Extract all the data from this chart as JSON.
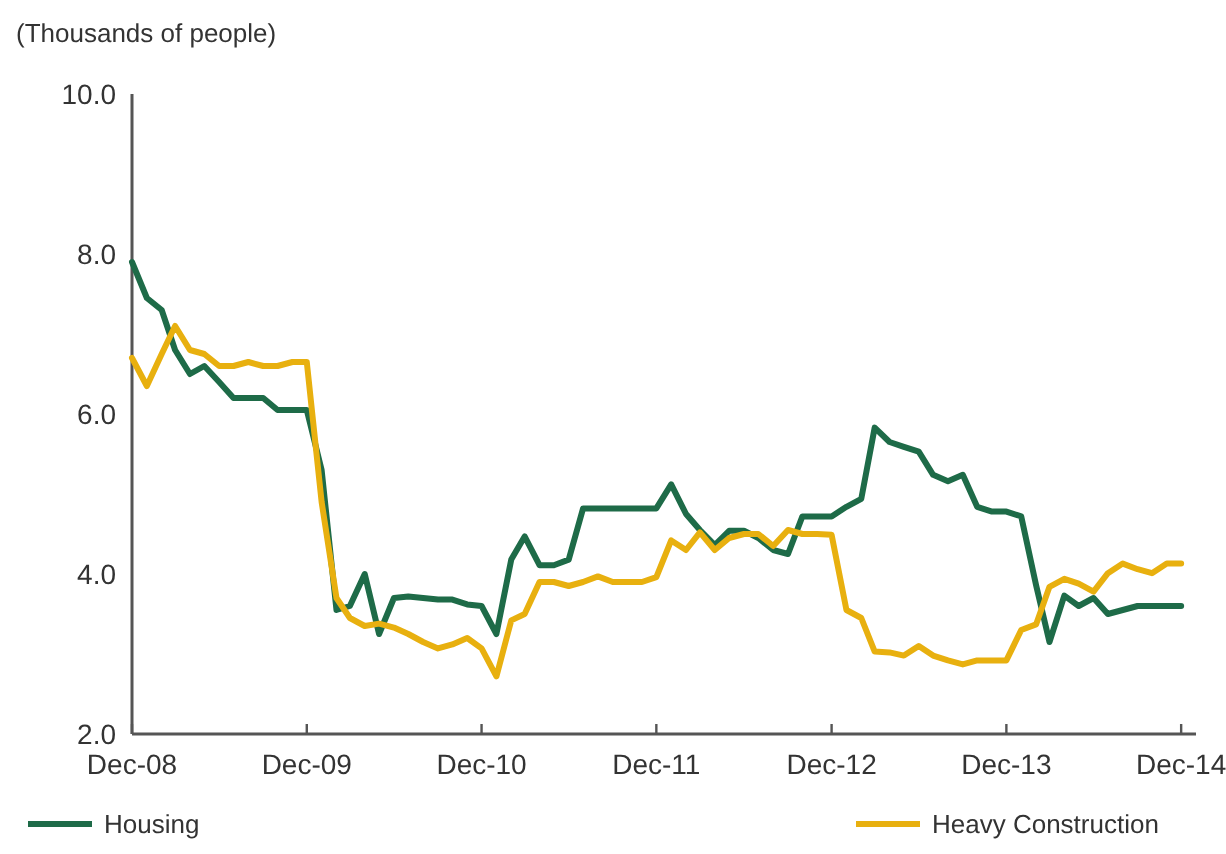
{
  "chart_data": {
    "type": "line",
    "ylabel": "(Thousands of people)",
    "x": [
      "2008-12",
      "2009-01",
      "2009-02",
      "2009-03",
      "2009-04",
      "2009-05",
      "2009-06",
      "2009-07",
      "2009-08",
      "2009-09",
      "2009-10",
      "2009-11",
      "2009-12",
      "2010-01",
      "2010-02",
      "2010-03",
      "2010-04",
      "2010-05",
      "2010-06",
      "2010-07",
      "2010-08",
      "2010-09",
      "2010-10",
      "2010-11",
      "2010-12",
      "2011-01",
      "2011-02",
      "2011-03",
      "2011-04",
      "2011-05",
      "2011-06",
      "2011-07",
      "2011-08",
      "2011-09",
      "2011-10",
      "2011-11",
      "2011-12",
      "2012-01",
      "2012-02",
      "2012-03",
      "2012-04",
      "2012-05",
      "2012-06",
      "2012-07",
      "2012-08",
      "2012-09",
      "2012-10",
      "2012-11",
      "2012-12",
      "2013-01",
      "2013-02",
      "2013-03",
      "2013-04",
      "2013-05",
      "2013-06",
      "2013-07",
      "2013-08",
      "2013-09",
      "2013-10",
      "2013-11",
      "2013-12",
      "2014-01",
      "2014-02",
      "2014-03",
      "2014-04",
      "2014-05",
      "2014-06",
      "2014-07",
      "2014-08",
      "2014-09",
      "2014-10",
      "2014-11",
      "2014-12"
    ],
    "series": [
      {
        "name": "Housing",
        "color": "#1e6b48",
        "values": [
          7.9,
          7.45,
          7.3,
          6.8,
          6.5,
          6.6,
          6.4,
          6.2,
          6.2,
          6.2,
          6.05,
          6.05,
          6.05,
          5.3,
          3.55,
          3.6,
          4.0,
          3.25,
          3.7,
          3.72,
          3.7,
          3.68,
          3.68,
          3.62,
          3.6,
          3.25,
          4.18,
          4.47,
          4.11,
          4.11,
          4.18,
          4.82,
          4.82,
          4.82,
          4.82,
          4.82,
          4.82,
          5.12,
          4.75,
          4.55,
          4.36,
          4.54,
          4.54,
          4.45,
          4.3,
          4.25,
          4.72,
          4.72,
          4.72,
          4.84,
          4.94,
          5.83,
          5.65,
          5.59,
          5.53,
          5.24,
          5.16,
          5.24,
          4.84,
          4.78,
          4.78,
          4.72,
          3.86,
          3.15,
          3.73,
          3.6,
          3.7,
          3.5,
          3.55,
          3.6,
          3.6,
          3.6,
          3.6
        ]
      },
      {
        "name": "Heavy Construction",
        "color": "#e8b00f",
        "values": [
          6.7,
          6.35,
          6.75,
          7.1,
          6.8,
          6.75,
          6.6,
          6.6,
          6.65,
          6.6,
          6.6,
          6.65,
          6.65,
          4.9,
          3.7,
          3.45,
          3.35,
          3.38,
          3.33,
          3.25,
          3.15,
          3.07,
          3.12,
          3.2,
          3.07,
          2.72,
          3.42,
          3.5,
          3.9,
          3.9,
          3.85,
          3.9,
          3.97,
          3.9,
          3.9,
          3.9,
          3.96,
          4.42,
          4.3,
          4.52,
          4.3,
          4.45,
          4.5,
          4.5,
          4.35,
          4.55,
          4.5,
          4.5,
          4.49,
          3.55,
          3.45,
          3.03,
          3.02,
          2.98,
          3.1,
          2.98,
          2.92,
          2.87,
          2.92,
          2.92,
          2.92,
          3.3,
          3.37,
          3.84,
          3.94,
          3.88,
          3.78,
          4.01,
          4.13,
          4.06,
          4.01,
          4.13,
          4.13
        ]
      }
    ],
    "xlim": [
      "2008-12",
      "2015-01"
    ],
    "xticks": [
      {
        "value": "2008-12",
        "label": "Dec-08"
      },
      {
        "value": "2009-12",
        "label": "Dec-09"
      },
      {
        "value": "2010-12",
        "label": "Dec-10"
      },
      {
        "value": "2011-12",
        "label": "Dec-11"
      },
      {
        "value": "2012-12",
        "label": "Dec-12"
      },
      {
        "value": "2013-12",
        "label": "Dec-13"
      },
      {
        "value": "2014-12",
        "label": "Dec-14"
      }
    ],
    "ylim": [
      2,
      10
    ],
    "yticks": [
      {
        "value": 2,
        "label": "2.0"
      },
      {
        "value": 4,
        "label": "4.0"
      },
      {
        "value": 6,
        "label": "6.0"
      },
      {
        "value": 8,
        "label": "8.0"
      },
      {
        "value": 10,
        "label": "10.0"
      }
    ],
    "grid": false,
    "legend": "bottom",
    "marker": "none",
    "line_style": "solid"
  }
}
